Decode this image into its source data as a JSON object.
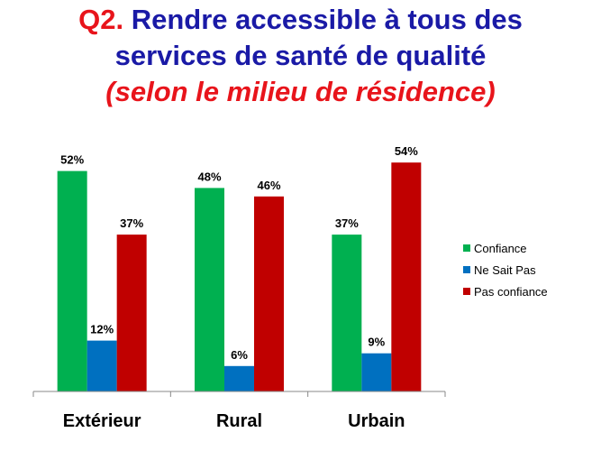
{
  "title": {
    "prefix": "Q2.",
    "line1": " Rendre accessible à tous des",
    "line2": "services de santé de qualité",
    "line3": "(selon le milieu de résidence)"
  },
  "colors": {
    "Confiance": "#00b050",
    "Ne Sait Pas": "#0070c0",
    "Pas confiance": "#c00000",
    "title_blue": "#1a1aa6",
    "title_red": "#e8141b"
  },
  "chart_data": {
    "type": "bar",
    "categories": [
      "Extérieur",
      "Rural",
      "Urbain"
    ],
    "series": [
      {
        "name": "Confiance",
        "values": [
          52,
          48,
          37
        ],
        "labels": [
          "52%",
          "48%",
          "37%"
        ]
      },
      {
        "name": "Ne Sait Pas",
        "values": [
          12,
          6,
          9
        ],
        "labels": [
          "12%",
          "6%",
          "9%"
        ]
      },
      {
        "name": "Pas confiance",
        "values": [
          37,
          46,
          54
        ],
        "labels": [
          "37%",
          "46%",
          "54%"
        ]
      }
    ],
    "title": "Q2. Rendre accessible à tous des services de santé de qualité (selon le milieu de résidence)",
    "xlabel": "",
    "ylabel": "",
    "ylim": [
      0,
      60
    ],
    "grid": false,
    "legend_position": "right"
  }
}
